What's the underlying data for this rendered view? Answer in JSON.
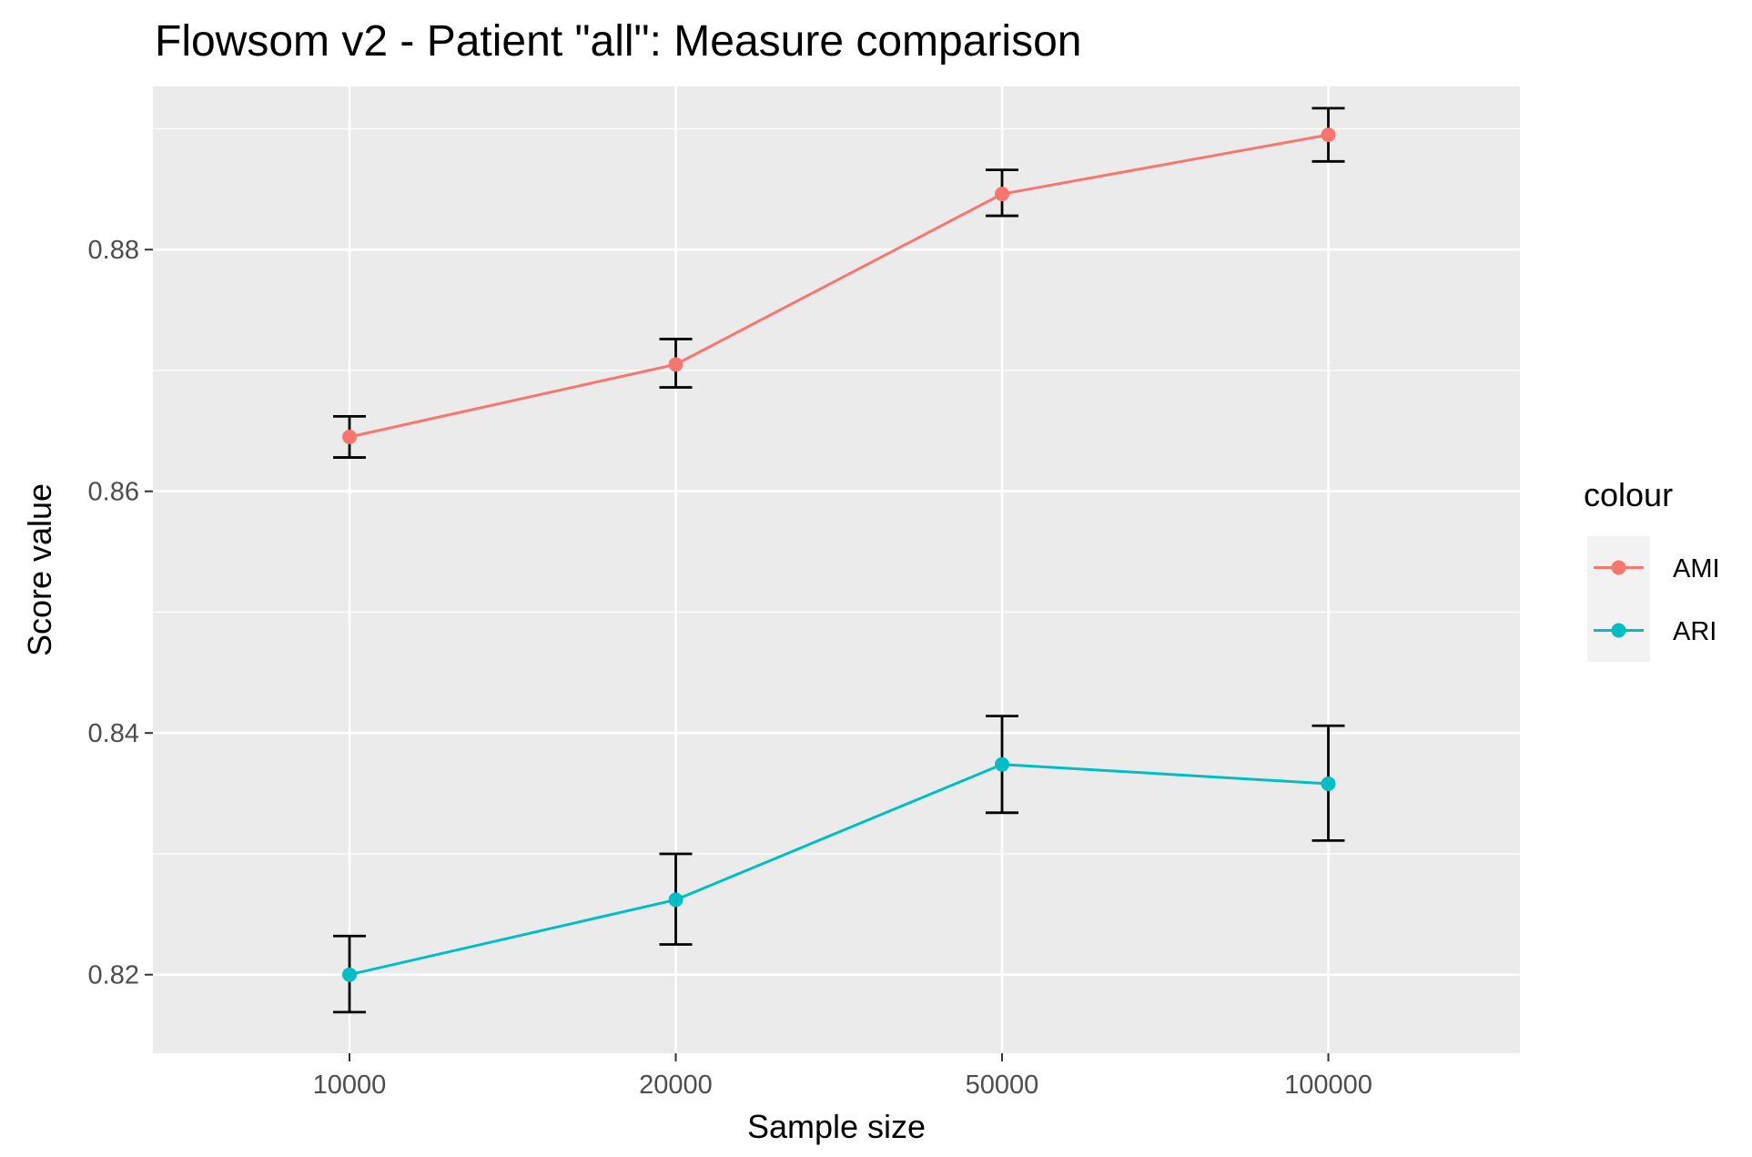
{
  "chart_data": {
    "type": "line",
    "title": "Flowsom v2 - Patient \"all\": Measure comparison",
    "xlabel": "Sample size",
    "ylabel": "Score value",
    "categories": [
      "10000",
      "20000",
      "50000",
      "100000"
    ],
    "ylim": [
      0.8135,
      0.8935
    ],
    "yticks": [
      0.82,
      0.84,
      0.86,
      0.88
    ],
    "ytick_labels": [
      "0.82",
      "0.84",
      "0.86",
      "0.88"
    ],
    "grid": true,
    "legend": {
      "title": "colour",
      "position": "right"
    },
    "series": [
      {
        "name": "AMI",
        "color": "#F8766D",
        "values": [
          0.8645,
          0.8705,
          0.8846,
          0.8895
        ],
        "err_low": [
          0.8628,
          0.8686,
          0.8828,
          0.8873
        ],
        "err_high": [
          0.8662,
          0.8726,
          0.8866,
          0.8917
        ]
      },
      {
        "name": "ARI",
        "color": "#00BFC4",
        "values": [
          0.82,
          0.8262,
          0.8374,
          0.8358
        ],
        "err_low": [
          0.8169,
          0.8225,
          0.8334,
          0.8311
        ],
        "err_high": [
          0.8232,
          0.83,
          0.8414,
          0.8406
        ]
      }
    ]
  }
}
